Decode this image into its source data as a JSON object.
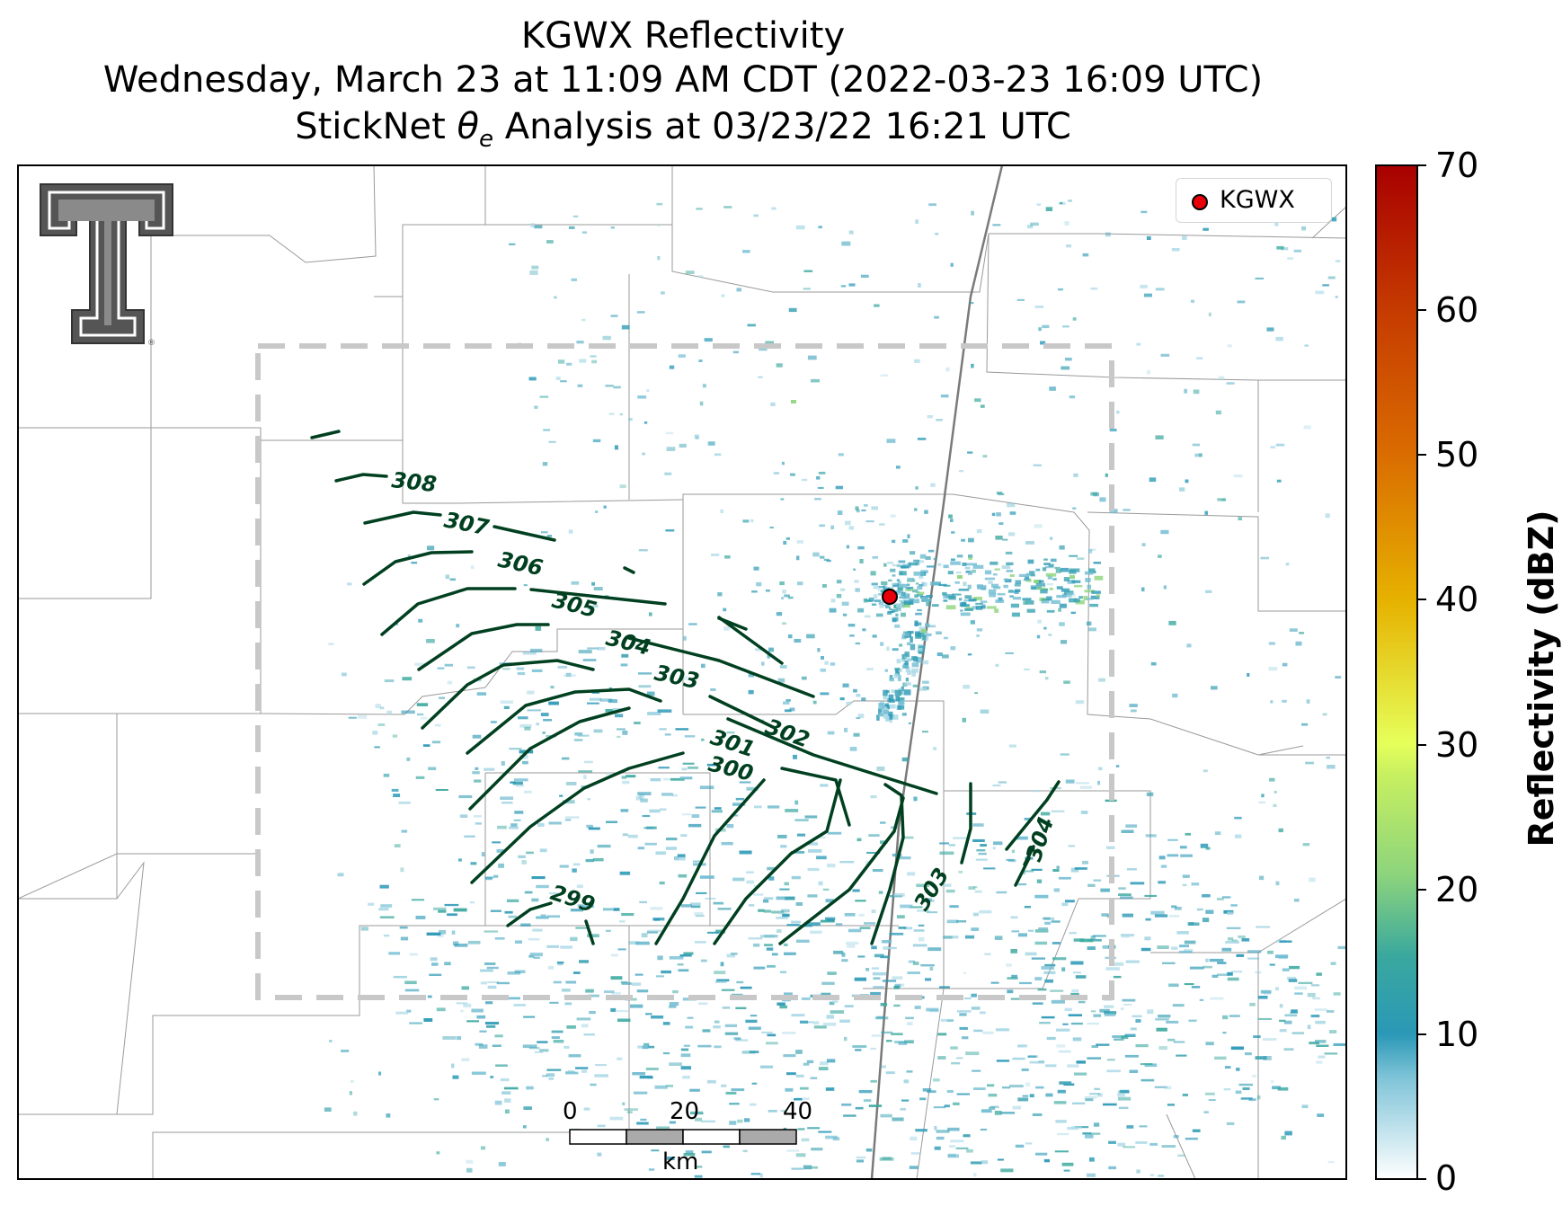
{
  "title": {
    "line1": "KGWX Reflectivity",
    "line2": "Wednesday, March 23 at 11:09 AM CDT (2022-03-23 16:09 UTC)",
    "line3_pre": "StickNet ",
    "line3_sym": "θ",
    "line3_sub": "e",
    "line3_post": " Analysis at 03/23/22 16:21 UTC"
  },
  "legend": {
    "label": "KGWX",
    "marker_color": "#e8000b"
  },
  "colorbar": {
    "label": "Reflectivity (dBZ)",
    "ticks": [
      "0",
      "10",
      "20",
      "30",
      "40",
      "50",
      "60",
      "70"
    ],
    "range": [
      0,
      70
    ],
    "colors": [
      "#ffffff",
      "#2a98b6",
      "#3aa89e",
      "#8cd47c",
      "#e6ff5a",
      "#e6b200",
      "#d96a00",
      "#a80000"
    ]
  },
  "scale_bar": {
    "ticks": [
      "0",
      "20",
      "40"
    ],
    "unit": "km"
  },
  "contours": {
    "color": "#004020",
    "labels": [
      "308",
      "307",
      "306",
      "305",
      "304",
      "303",
      "302",
      "301",
      "300",
      "299",
      "303",
      "304"
    ]
  },
  "radar_site": {
    "name": "KGWX",
    "color": "#e8000b"
  },
  "logo": {
    "name": "texas-tech-double-t-logo",
    "text": "TT"
  },
  "analysis_box": {
    "style": "dashed",
    "color": "#c8c8c8"
  }
}
